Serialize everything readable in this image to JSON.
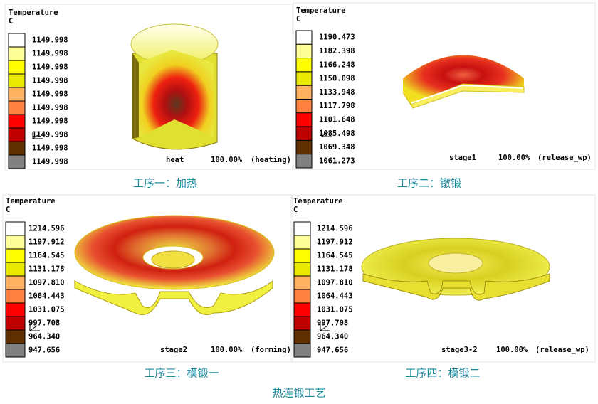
{
  "panels": [
    {
      "legend": {
        "title": "Temperature",
        "unit": "C",
        "values": [
          "1149.998",
          "1149.998",
          "1149.998",
          "1149.998",
          "1149.998",
          "1149.998",
          "1149.998",
          "1149.998",
          "1149.998",
          "1149.998"
        ]
      },
      "stage": "heat",
      "progress": "100.00%",
      "mode": "(heating)",
      "caption": "工序一：加热"
    },
    {
      "legend": {
        "title": "Temperature",
        "unit": "C",
        "values": [
          "1190.473",
          "1182.398",
          "1166.248",
          "1150.098",
          "1133.948",
          "1117.798",
          "1101.648",
          "1085.498",
          "1069.348",
          "1061.273"
        ]
      },
      "stage": "stage1",
      "progress": "100.00%",
      "mode": "(release_wp)",
      "caption": "工序二：镦锻"
    },
    {
      "legend": {
        "title": "Temperature",
        "unit": "C",
        "values": [
          "1214.596",
          "1197.912",
          "1164.545",
          "1131.178",
          "1097.810",
          "1064.443",
          "1031.075",
          "997.708",
          "964.340",
          "947.656"
        ]
      },
      "stage": "stage2",
      "progress": "100.00%",
      "mode": "(forming)",
      "caption": "工序三：模锻一"
    },
    {
      "legend": {
        "title": "Temperature",
        "unit": "C",
        "values": [
          "1214.596",
          "1197.912",
          "1164.545",
          "1131.178",
          "1097.810",
          "1064.443",
          "1031.075",
          "997.708",
          "964.340",
          "947.656"
        ]
      },
      "stage": "stage3-2",
      "progress": "100.00%",
      "mode": "(release_wp)",
      "caption": "工序四：模锻二"
    }
  ],
  "caption": "热连锻工艺"
}
